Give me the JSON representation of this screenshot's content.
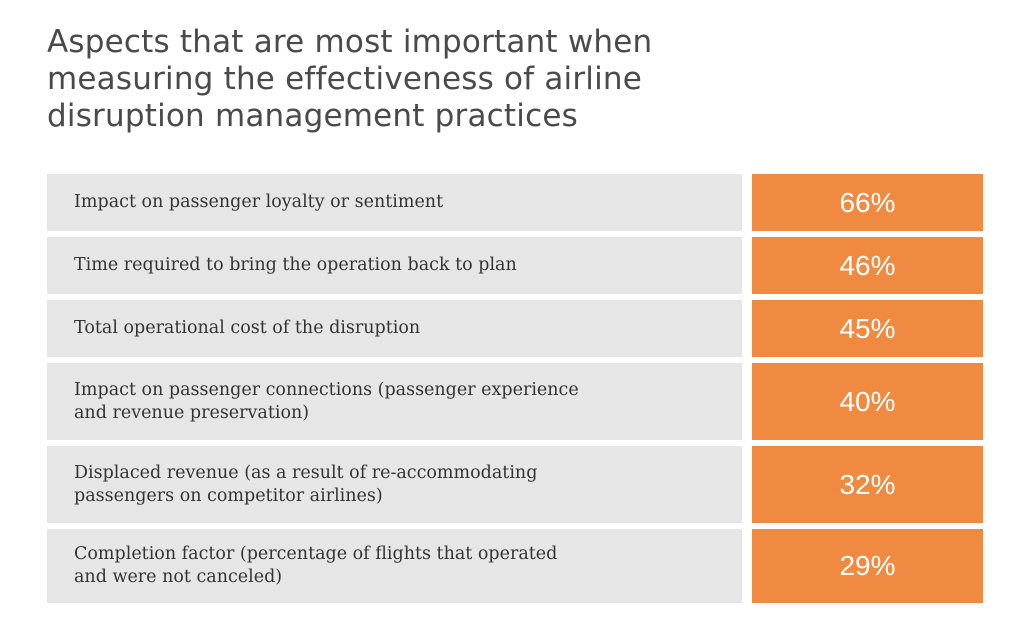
{
  "chart_data": {
    "type": "table",
    "title": "Aspects that are most important when measuring the effectiveness of airline disruption management practices",
    "title_lines": [
      "Aspects that are most important when",
      "measuring the effectiveness of airline",
      "disruption management practices"
    ],
    "categories": [
      "Impact on passenger loyalty or sentiment",
      "Time required to bring the operation back to plan",
      "Total operational cost of the disruption",
      "Impact on passenger connections (passenger experience and revenue preservation)",
      "Displaced revenue (as a result of re-accommodating passengers on competitor airlines)",
      "Completion factor (percentage of flights that operated and were not canceled)"
    ],
    "category_lines": [
      [
        "Impact on passenger loyalty or sentiment"
      ],
      [
        "Time required to bring the operation back to plan"
      ],
      [
        "Total operational cost of the disruption"
      ],
      [
        "Impact on passenger connections (passenger experience",
        "and revenue preservation)"
      ],
      [
        "Displaced revenue (as a result of re-accommodating",
        "passengers on competitor airlines)"
      ],
      [
        "Completion factor (percentage of flights that operated",
        "and were not canceled)"
      ]
    ],
    "values": [
      66,
      46,
      45,
      40,
      32,
      29
    ],
    "value_labels": [
      "66%",
      "46%",
      "45%",
      "40%",
      "32%",
      "29%"
    ],
    "label_color": "#e6e6e6",
    "value_color": "#f08a40"
  }
}
